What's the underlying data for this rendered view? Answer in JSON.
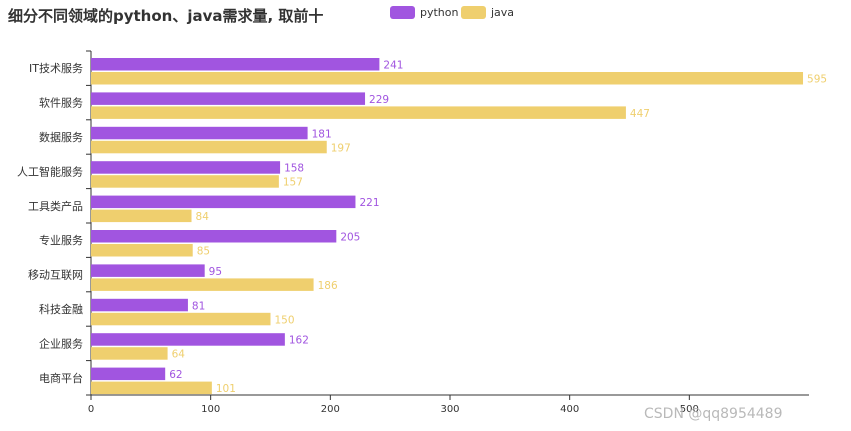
{
  "chart_data": {
    "type": "bar",
    "orientation": "horizontal",
    "title": "细分不同领域的python、java需求量, 取前十",
    "categories": [
      "IT技术服务",
      "软件服务",
      "数据服务",
      "人工智能服务",
      "工具类产品",
      "专业服务",
      "移动互联网",
      "科技金融",
      "企业服务",
      "电商平台"
    ],
    "series": [
      {
        "name": "python",
        "color": "#a155e0",
        "values": [
          241,
          229,
          181,
          158,
          221,
          205,
          95,
          81,
          162,
          62
        ]
      },
      {
        "name": "java",
        "color": "#efcf6e",
        "values": [
          595,
          447,
          197,
          157,
          84,
          85,
          186,
          150,
          64,
          101
        ]
      }
    ],
    "xlim": [
      0,
      600
    ],
    "x_ticks": [
      0,
      100,
      200,
      300,
      400,
      500
    ],
    "legend_position": "top-center",
    "grid": false
  },
  "watermark": "CSDN @qq8954489"
}
